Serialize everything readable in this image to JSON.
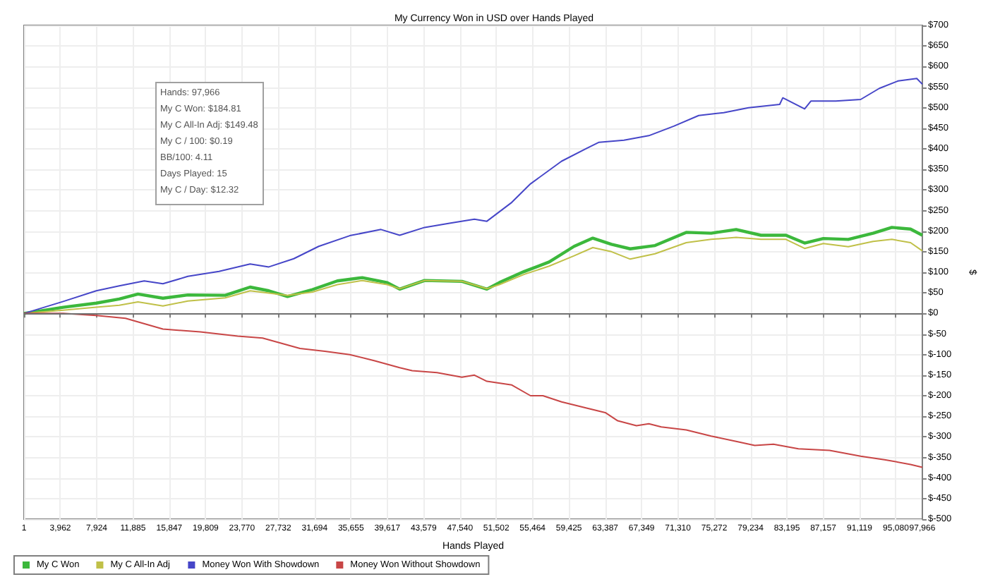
{
  "chart_data": {
    "type": "line",
    "title": "My Currency Won in USD over Hands Played",
    "xlabel": "Hands Played",
    "ylabel": "$",
    "xlim": [
      1,
      97966
    ],
    "ylim": [
      -500,
      700
    ],
    "xticks": [
      1,
      {
        "value": 3962,
        "label": "3,962"
      },
      {
        "value": 7924,
        "label": "7,924"
      },
      {
        "value": 11885,
        "label": "11,885"
      },
      {
        "value": 15847,
        "label": "15,847"
      },
      {
        "value": 19809,
        "label": "19,809"
      },
      {
        "value": 23770,
        "label": "23,770"
      },
      {
        "value": 27732,
        "label": "27,732"
      },
      {
        "value": 31694,
        "label": "31,694"
      },
      {
        "value": 35655,
        "label": "35,655"
      },
      {
        "value": 39617,
        "label": "39,617"
      },
      {
        "value": 43579,
        "label": "43,579"
      },
      {
        "value": 47540,
        "label": "47,540"
      },
      {
        "value": 51502,
        "label": "51,502"
      },
      {
        "value": 55464,
        "label": "55,464"
      },
      {
        "value": 59425,
        "label": "59,425"
      },
      {
        "value": 63387,
        "label": "63,387"
      },
      {
        "value": 67349,
        "label": "67,349"
      },
      {
        "value": 71310,
        "label": "71,310"
      },
      {
        "value": 75272,
        "label": "75,272"
      },
      {
        "value": 79234,
        "label": "79,234"
      },
      {
        "value": 83195,
        "label": "83,195"
      },
      {
        "value": 87157,
        "label": "87,157"
      },
      {
        "value": 91119,
        "label": "91,119"
      },
      {
        "value": 95080,
        "label": "95,080"
      },
      {
        "value": 97966,
        "label": "97,966"
      }
    ],
    "yticks": [
      {
        "value": -500,
        "label": "$-500"
      },
      {
        "value": -450,
        "label": "$-450"
      },
      {
        "value": -400,
        "label": "$-400"
      },
      {
        "value": -350,
        "label": "$-350"
      },
      {
        "value": -300,
        "label": "$-300"
      },
      {
        "value": -250,
        "label": "$-250"
      },
      {
        "value": -200,
        "label": "$-200"
      },
      {
        "value": -150,
        "label": "$-150"
      },
      {
        "value": -100,
        "label": "$-100"
      },
      {
        "value": -50,
        "label": "$-50"
      },
      {
        "value": 0,
        "label": "$0"
      },
      {
        "value": 50,
        "label": "$50"
      },
      {
        "value": 100,
        "label": "$100"
      },
      {
        "value": 150,
        "label": "$150"
      },
      {
        "value": 200,
        "label": "$200"
      },
      {
        "value": 250,
        "label": "$250"
      },
      {
        "value": 300,
        "label": "$300"
      },
      {
        "value": 350,
        "label": "$350"
      },
      {
        "value": 400,
        "label": "$400"
      },
      {
        "value": 450,
        "label": "$450"
      },
      {
        "value": 500,
        "label": "$500"
      },
      {
        "value": 550,
        "label": "$550"
      },
      {
        "value": 600,
        "label": "$600"
      },
      {
        "value": 650,
        "label": "$650"
      },
      {
        "value": 700,
        "label": "$700"
      }
    ],
    "grid": true,
    "legend": "bottom left",
    "marker": "none",
    "line_style": "solid",
    "ref_lines": [
      {
        "axis": "y",
        "value": 0,
        "color": "#707070"
      }
    ],
    "annotations": [
      "Hands: 97,966",
      "My C Won: $184.81",
      "My C All-In Adj: $149.48",
      "My C / 100: $0.19",
      "BB/100: 4.11",
      "Days Played: 15",
      "My C / Day: $12.32"
    ],
    "series": [
      {
        "name": "My C Won",
        "color": "#3cb83c",
        "x": [
          1,
          4280,
          7880,
          10390,
          12430,
          15150,
          17870,
          21950,
          24660,
          26700,
          28740,
          31460,
          34170,
          36890,
          39610,
          40970,
          43690,
          47760,
          50480,
          51840,
          54560,
          57270,
          59990,
          62030,
          64070,
          66110,
          68820,
          72220,
          74940,
          77660,
          80370,
          83090,
          85130,
          87170,
          89890,
          92600,
          94640,
          96680,
          97966
        ],
        "values": [
          0,
          15,
          25,
          35,
          47,
          37,
          45,
          44,
          64,
          55,
          41,
          58,
          79,
          87,
          75,
          59,
          80,
          78,
          59,
          75,
          102,
          125,
          163,
          183,
          168,
          157,
          165,
          197,
          195,
          204,
          190,
          190,
          171,
          182,
          180,
          195,
          209,
          205,
          190
        ]
      },
      {
        "name": "My C All-In Adj",
        "color": "#c0c048",
        "x": [
          1,
          4280,
          7880,
          10390,
          12430,
          15150,
          17870,
          21950,
          24660,
          28740,
          31460,
          34170,
          36890,
          39610,
          40970,
          43690,
          47760,
          50480,
          51840,
          54560,
          57270,
          59990,
          62030,
          64070,
          66110,
          68820,
          72220,
          74940,
          77660,
          80370,
          83090,
          85130,
          87170,
          89890,
          92600,
          94640,
          96680,
          97966
        ],
        "values": [
          0,
          8,
          15,
          20,
          28,
          18,
          30,
          38,
          55,
          44,
          52,
          70,
          80,
          70,
          60,
          80,
          78,
          60,
          70,
          95,
          115,
          140,
          160,
          150,
          132,
          145,
          172,
          180,
          185,
          180,
          180,
          158,
          170,
          162,
          175,
          180,
          172,
          152
        ]
      },
      {
        "name": "Money Won With Showdown",
        "color": "#4646c8",
        "x": [
          1,
          4280,
          7880,
          10390,
          13110,
          15150,
          17870,
          21270,
          24660,
          26700,
          29420,
          32140,
          35530,
          38930,
          40970,
          43690,
          46400,
          49120,
          50480,
          53200,
          55240,
          58630,
          61350,
          62710,
          65430,
          68140,
          70860,
          73580,
          76300,
          79010,
          82410,
          82750,
          85130,
          85810,
          88530,
          91240,
          93280,
          95320,
          97360,
          97966
        ],
        "values": [
          0,
          29,
          55,
          67,
          79,
          72,
          90,
          102,
          120,
          113,
          133,
          163,
          189,
          204,
          190,
          209,
          219,
          229,
          224,
          270,
          315,
          370,
          401,
          416,
          421,
          432,
          455,
          481,
          488,
          500,
          508,
          524,
          497,
          516,
          516,
          520,
          547,
          565,
          571,
          557
        ]
      },
      {
        "name": "Money Won Without Showdown",
        "color": "#c84646",
        "x": [
          1,
          4280,
          7880,
          11070,
          15150,
          19230,
          23300,
          26020,
          30100,
          32810,
          35530,
          38250,
          40970,
          42330,
          45040,
          47760,
          49120,
          50480,
          53200,
          55240,
          56590,
          58630,
          61350,
          63390,
          64750,
          66790,
          68140,
          69500,
          72220,
          74940,
          77660,
          79690,
          81730,
          84450,
          87850,
          91240,
          93960,
          96680,
          97966
        ],
        "values": [
          0,
          0,
          -5,
          -12,
          -38,
          -45,
          -55,
          -60,
          -85,
          -92,
          -100,
          -115,
          -132,
          -139,
          -144,
          -155,
          -150,
          -165,
          -174,
          -200,
          -200,
          -215,
          -230,
          -241,
          -261,
          -273,
          -268,
          -276,
          -283,
          -298,
          -311,
          -321,
          -318,
          -329,
          -333,
          -347,
          -356,
          -367,
          -374
        ]
      }
    ]
  }
}
